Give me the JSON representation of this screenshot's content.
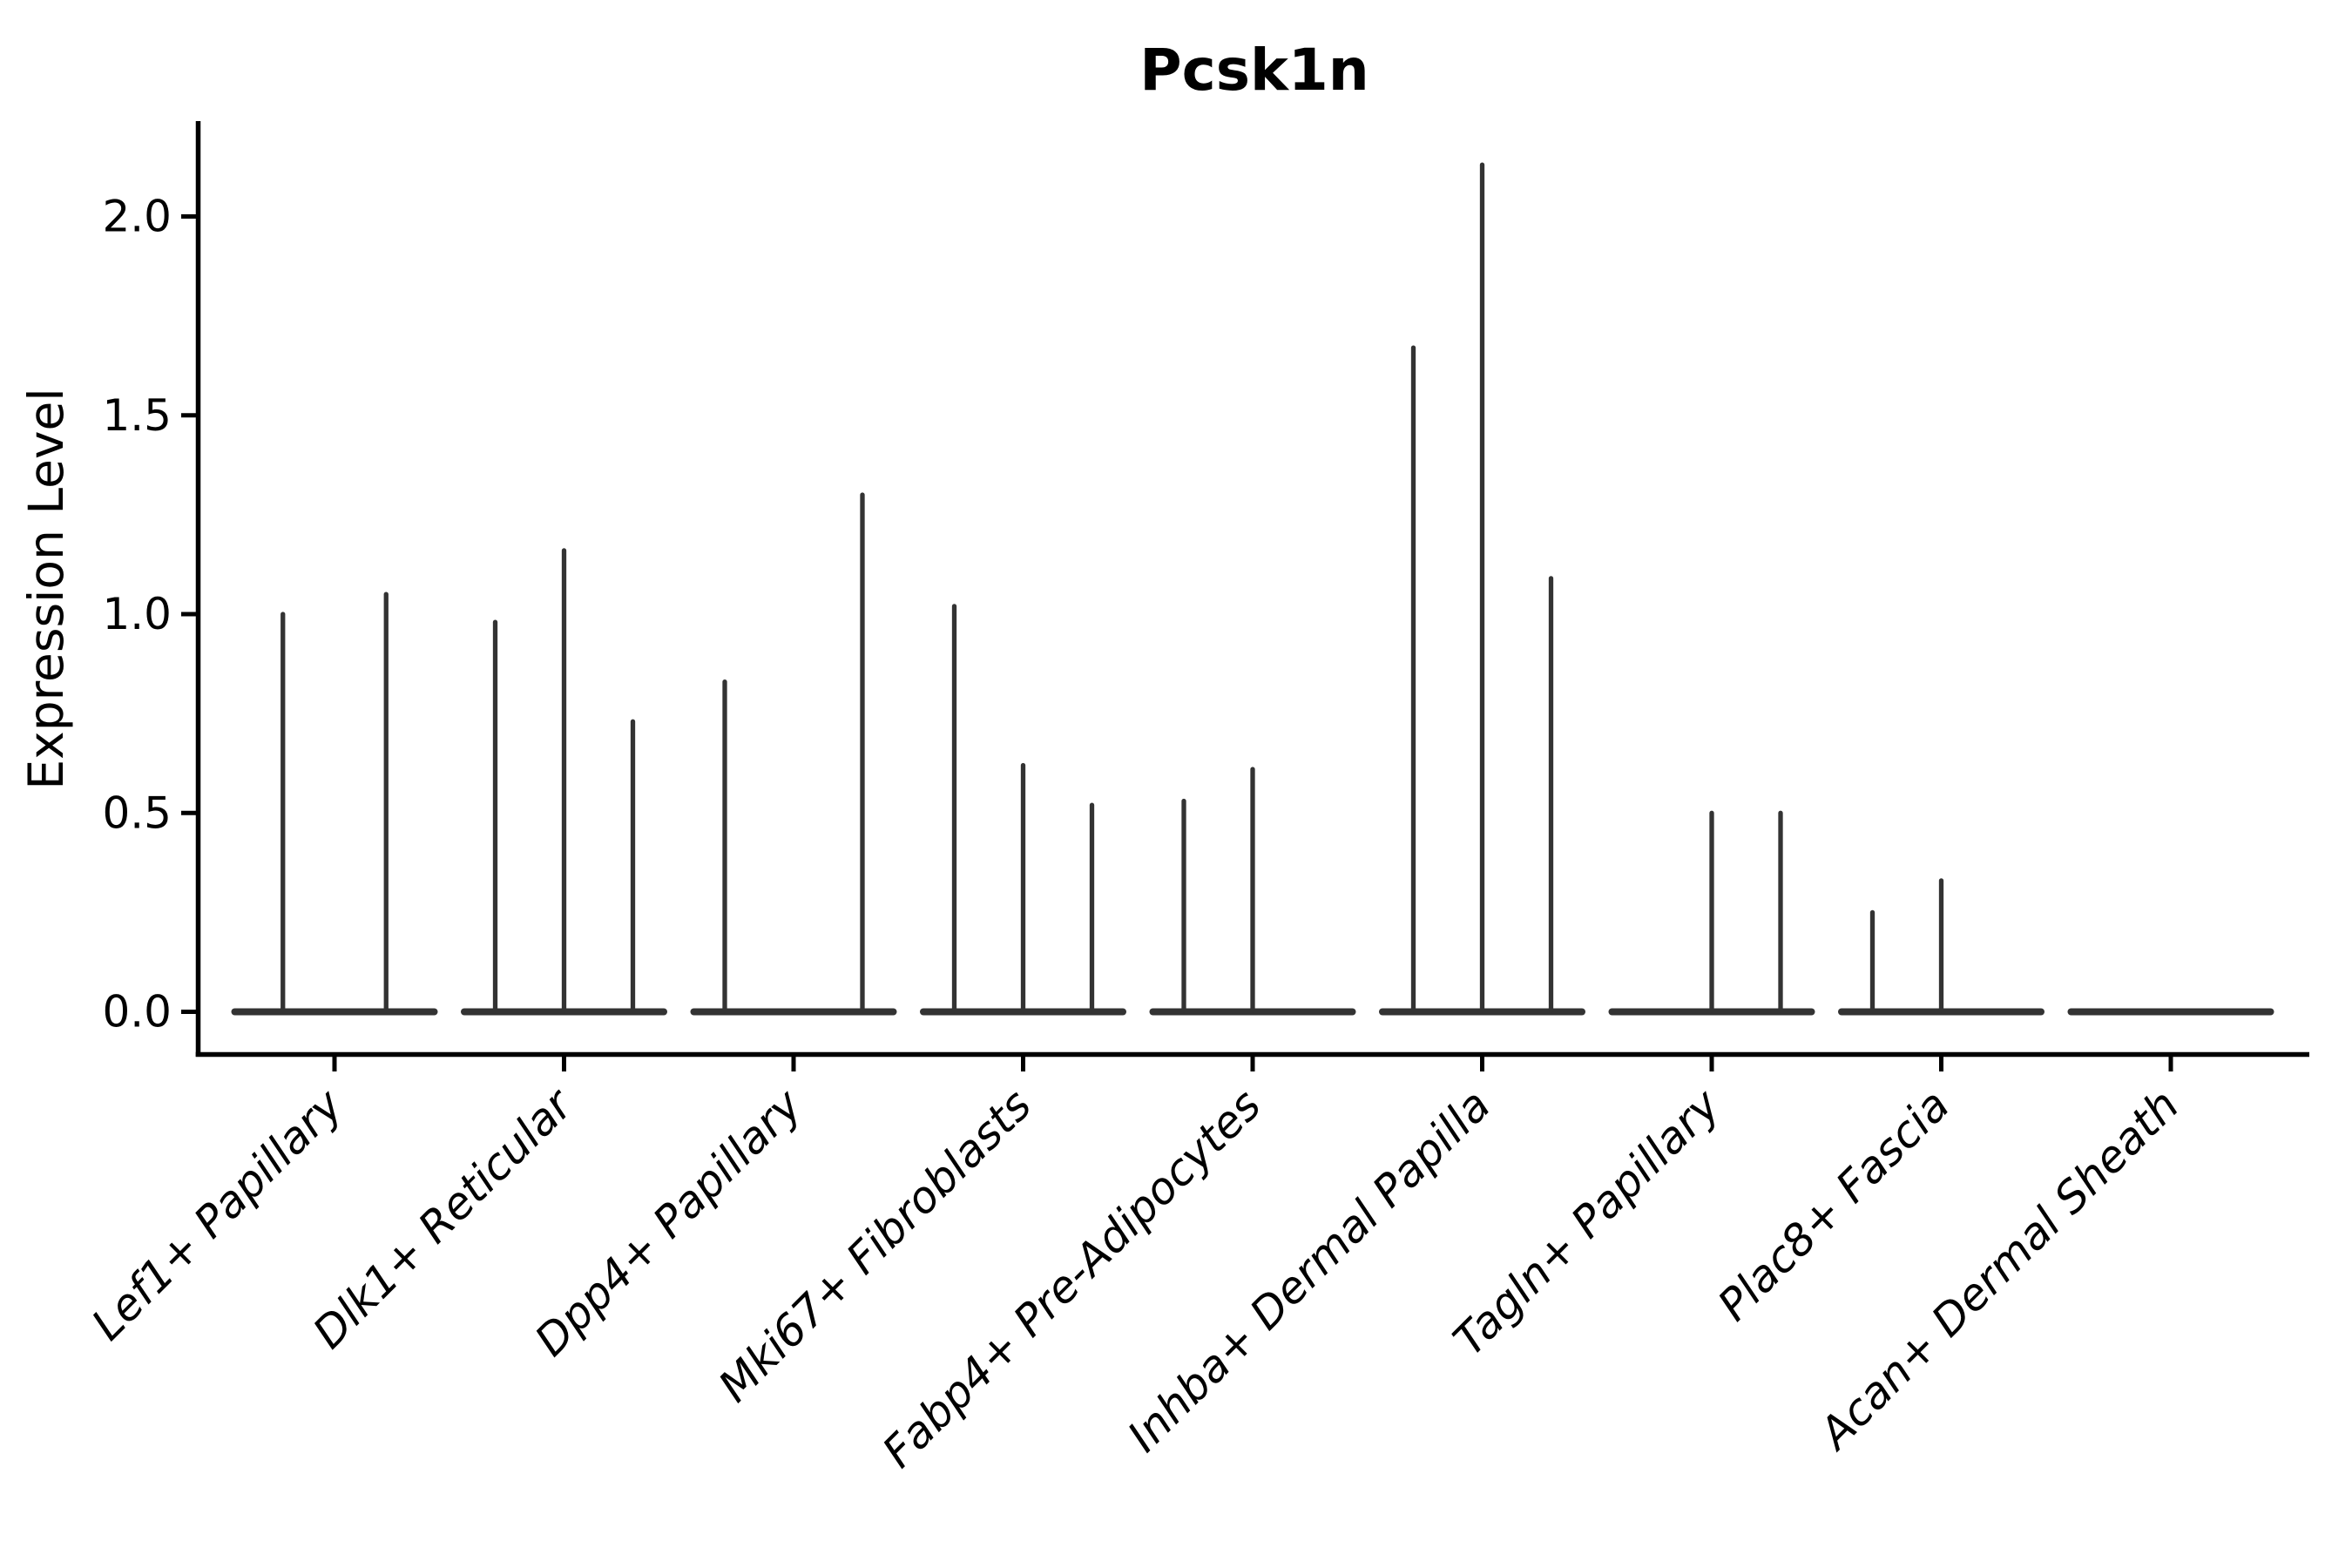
{
  "chart_data": {
    "type": "violin",
    "title": "Pcsk1n",
    "xlabel": "",
    "ylabel": "Expression Level",
    "yticks": [
      0.0,
      0.5,
      1.0,
      1.5,
      2.0
    ],
    "ytick_labels": [
      "0.0",
      "0.5",
      "1.0",
      "1.5",
      "2.0"
    ],
    "ylim": [
      -0.11,
      2.24
    ],
    "grid": false,
    "legend_position": "none",
    "x_tick_label_rotation_deg": 45,
    "colors": {
      "violin": "#333333",
      "axis": "#000000",
      "text": "#000000",
      "background": "#ffffff"
    },
    "categories": [
      "Lef1+ Papillary",
      "Dlk1+ Reticular",
      "Dpp4+ Papillary",
      "Mki67+ Fibroblasts",
      "Fabp4+ Pre-Adipocytes",
      "Inhba+ Dermal Papilla",
      "Tagln+ Papillary",
      "Plac8+ Fascia",
      "Acan+ Dermal Sheath"
    ],
    "groups": [
      {
        "category": "Lef1+ Papillary",
        "values": [
          1.0,
          1.05
        ]
      },
      {
        "category": "Dlk1+ Reticular",
        "values": [
          0.98,
          1.16,
          0.73
        ]
      },
      {
        "category": "Dpp4+ Papillary",
        "values": [
          0.83,
          0,
          1.3
        ]
      },
      {
        "category": "Mki67+ Fibroblasts",
        "values": [
          1.02,
          0.62,
          0.52
        ]
      },
      {
        "category": "Fabp4+ Pre-Adipocytes",
        "values": [
          0.53,
          0.61,
          0
        ]
      },
      {
        "category": "Inhba+ Dermal Papilla",
        "values": [
          1.67,
          2.13,
          1.09
        ]
      },
      {
        "category": "Tagln+ Papillary",
        "values": [
          0,
          0.5,
          0.5
        ]
      },
      {
        "category": "Plac8+ Fascia",
        "values": [
          0.25,
          0.33,
          0
        ]
      },
      {
        "category": "Acan+ Dermal Sheath",
        "values": [
          0,
          0,
          0
        ]
      }
    ]
  }
}
